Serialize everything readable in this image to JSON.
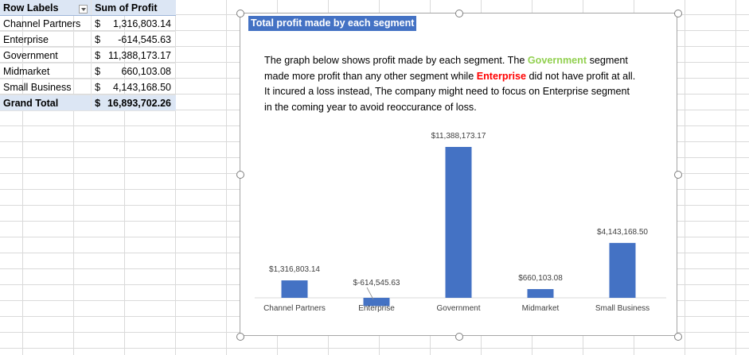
{
  "pivot": {
    "header": {
      "row_labels": "Row Labels",
      "sum_label": "Sum of Profit"
    },
    "rows": [
      {
        "label": "Channel Partners",
        "currency": "$",
        "amount": "1,316,803.14"
      },
      {
        "label": "Enterprise",
        "currency": "$",
        "amount": "-614,545.63"
      },
      {
        "label": "Government",
        "currency": "$",
        "amount": "11,388,173.17"
      },
      {
        "label": "Midmarket",
        "currency": "$",
        "amount": "660,103.08"
      },
      {
        "label": "Small Business",
        "currency": "$",
        "amount": "4,143,168.50"
      }
    ],
    "total": {
      "label": "Grand Total",
      "currency": "$",
      "amount": "16,893,702.26"
    }
  },
  "chart": {
    "title": "Total profit made by each segment",
    "description": {
      "p1": "The graph below shows profit made by each segment. The ",
      "gov": "Government",
      "p2": " segment made more profit than any other segment while ",
      "ent": "Enterprise",
      "p3": " did not have profit at all. It incured a loss instead, The company might need to focus on Enterprise segment in the coming year to avoid reoccurance of loss."
    }
  },
  "chart_data": {
    "type": "bar",
    "title": "Total profit made by each segment",
    "categories": [
      "Channel Partners",
      "Enterprise",
      "Government",
      "Midmarket",
      "Small Business"
    ],
    "values": [
      1316803.14,
      -614545.63,
      11388173.17,
      660103.08,
      4143168.5
    ],
    "data_labels": [
      "$1,316,803.14",
      "$-614,545.63",
      "$11,388,173.17",
      "$660,103.08",
      "$4,143,168.50"
    ],
    "bar_color": "#4472c4",
    "grid": false,
    "legend": "none"
  }
}
